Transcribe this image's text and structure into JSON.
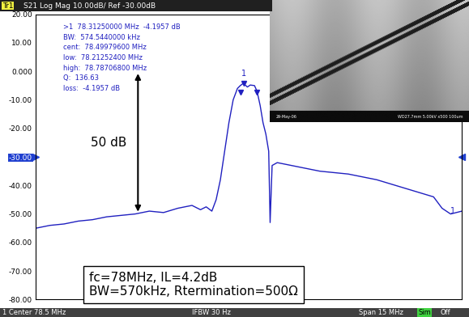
{
  "chart_data": {
    "type": "line",
    "header": {
      "trace": "Tr1",
      "text": "S21 Log Mag 10.00dB/ Ref -30.00dB"
    },
    "reference": -30,
    "x": [
      71.0,
      71.5,
      72.0,
      72.5,
      73.0,
      73.5,
      74.0,
      74.5,
      75.0,
      75.5,
      76.0,
      76.5,
      76.8,
      77.0,
      77.2,
      77.35,
      77.5,
      77.65,
      77.8,
      77.95,
      78.1,
      78.2,
      78.31,
      78.45,
      78.55,
      78.7,
      78.79,
      78.9,
      79.0,
      79.1,
      79.2,
      79.25,
      79.32,
      79.5,
      80.0,
      80.5,
      81.0,
      82.0,
      83.0,
      84.0,
      85.0,
      85.3,
      85.6,
      86.0
    ],
    "values": [
      -55,
      -54,
      -53.5,
      -52.5,
      -52,
      -51,
      -50.5,
      -50,
      -49,
      -49.5,
      -48,
      -47,
      -48.5,
      -47.5,
      -49,
      -45,
      -38,
      -28,
      -18,
      -10,
      -6,
      -5,
      -4.2,
      -5.5,
      -4.8,
      -5,
      -7,
      -12,
      -18,
      -22,
      -28,
      -53,
      -33,
      -32,
      -33,
      -34,
      -35,
      -36,
      -38,
      -41,
      -44,
      -48,
      -50,
      -49
    ],
    "color": "#2020c0",
    "xlim": [
      71,
      86
    ],
    "ylim": [
      -80,
      20
    ],
    "yticks": [
      {
        "value": 20,
        "label": "20.00"
      },
      {
        "value": 10,
        "label": "10.00"
      },
      {
        "value": 0,
        "label": "0.000"
      },
      {
        "value": -10,
        "label": "-10.00"
      },
      {
        "value": -20,
        "label": "-20.00"
      },
      {
        "value": -30,
        "label": "-30.00"
      },
      {
        "value": -40,
        "label": "-40.00"
      },
      {
        "value": -50,
        "label": "-50.00"
      },
      {
        "value": -60,
        "label": "-60.00"
      },
      {
        "value": -70,
        "label": "-70.00"
      },
      {
        "value": -80,
        "label": "-80.00"
      }
    ],
    "grid": false,
    "tick_labels": "y",
    "trace_label": "1",
    "markers": [
      {
        "label": "1",
        "x": 78.3125,
        "y": -4.1957
      },
      {
        "x": 78.212524,
        "y": -7.2
      },
      {
        "x": 78.787068,
        "y": -7.2
      }
    ],
    "marker_readout": [
      ">1  78.31250000 MHz  -4.1957 dB",
      "BW:  574.5440000 kHz",
      "cent:  78.49979600 MHz",
      "low:  78.21252400 MHz",
      "high:  78.78706800 MHz",
      "Q:  136.63",
      "loss:  -4.1957 dB"
    ],
    "annotation": {
      "text": "50 dB",
      "from": 0,
      "to": -50
    },
    "note": [
      "fc=78MHz, IL=4.2dB",
      "BW=570kHz, Rtermination=500Ω"
    ],
    "footer": {
      "left": "1 Center 78.5 MHz",
      "middle": "IFBW 30 Hz",
      "right": "Span 15 MHz",
      "status": [
        "Sim",
        "Off"
      ]
    },
    "inset": {
      "date": "29-May-06",
      "info": "WD27.7mm 5.00kV x500 100um"
    }
  }
}
